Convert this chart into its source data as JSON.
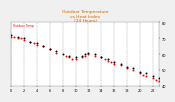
{
  "title": "Outdoor Temperature\nvs Heat Index\n(24 Hours)",
  "title_color": "#cc6600",
  "bg_color": "#f0f0f0",
  "plot_bg_color": "#ffffff",
  "grid_color": "#999999",
  "series_temp": {
    "label": "Outdoor Temp",
    "color": "#ff0000",
    "x": [
      0.0,
      0.5,
      1.0,
      1.5,
      2.0,
      3.0,
      3.5,
      4.0,
      5.0,
      6.0,
      7.0,
      8.5,
      9.0,
      9.5,
      10.0,
      11.0,
      11.5,
      12.0,
      13.0,
      14.0,
      14.5,
      15.0,
      15.5,
      16.0,
      17.0,
      18.0,
      19.0,
      20.0,
      20.5,
      21.0,
      22.0,
      22.5,
      23.0
    ],
    "y": [
      71,
      71,
      70,
      70,
      69,
      68,
      67,
      66,
      65,
      63,
      61,
      59,
      58,
      57,
      57,
      58,
      59,
      60,
      59,
      58,
      57,
      56,
      55,
      54,
      53,
      51,
      50,
      48,
      47,
      46,
      45,
      44,
      43
    ]
  },
  "series_heat": {
    "label": "Heat Index",
    "color": "#000000",
    "x": [
      0.0,
      1.0,
      2.0,
      3.0,
      4.0,
      5.0,
      6.0,
      7.0,
      8.0,
      9.0,
      10.0,
      11.0,
      11.5,
      12.0,
      13.0,
      14.0,
      15.0,
      16.0,
      17.0,
      18.0,
      19.0,
      20.0,
      21.0,
      22.0,
      23.0
    ],
    "y": [
      72,
      71,
      70,
      68,
      67,
      65,
      63,
      62,
      60,
      59,
      58,
      59,
      60,
      61,
      60,
      58,
      57,
      55,
      54,
      52,
      51,
      49,
      48,
      46,
      45
    ]
  },
  "xlim": [
    0,
    23
  ],
  "ylim": [
    40,
    80
  ],
  "xtick_positions": [
    0,
    2,
    4,
    6,
    8,
    10,
    12,
    14,
    16,
    18,
    20,
    22
  ],
  "xtick_labels": [
    "0",
    "2",
    "4",
    "6",
    "8",
    "10",
    "12",
    "14",
    "16",
    "18",
    "20",
    "22"
  ],
  "ytick_positions": [
    40,
    50,
    60,
    70,
    80
  ],
  "ytick_labels": [
    "40",
    "50",
    "60",
    "70",
    "80"
  ],
  "grid_x_positions": [
    0,
    2,
    4,
    6,
    8,
    10,
    12,
    14,
    16,
    18,
    20,
    22
  ],
  "dot_size": 2,
  "legend_text": "Outdoor Temp",
  "legend_color": "#ff0000"
}
